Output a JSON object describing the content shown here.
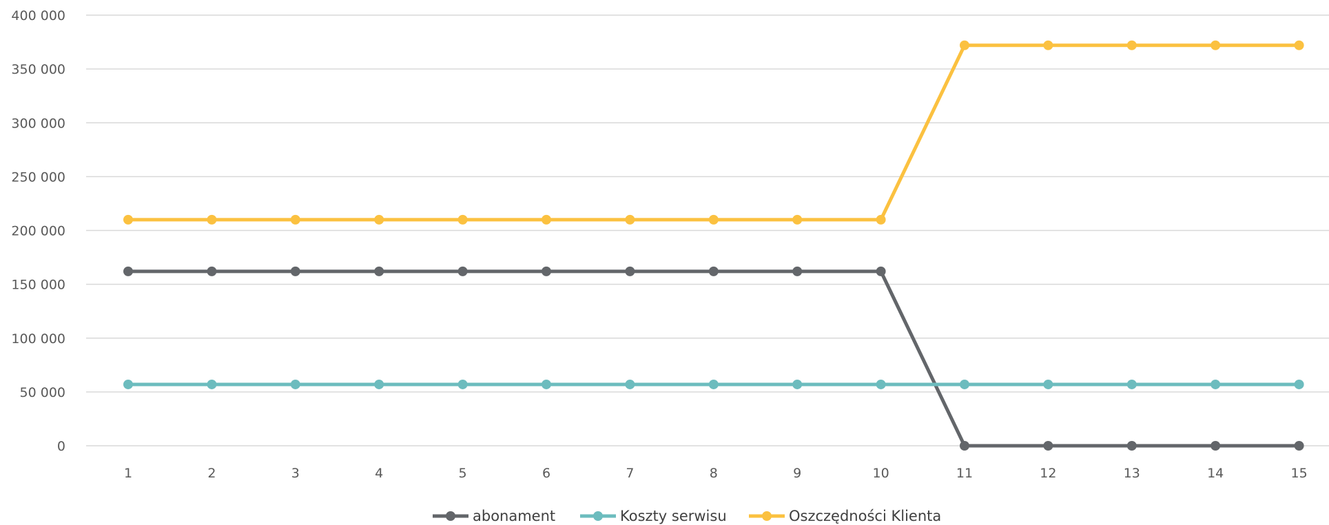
{
  "chart_data": {
    "type": "line",
    "title": "",
    "xlabel": "",
    "ylabel": "",
    "categories": [
      "1",
      "2",
      "3",
      "4",
      "5",
      "6",
      "7",
      "8",
      "9",
      "10",
      "11",
      "12",
      "13",
      "14",
      "15"
    ],
    "y_ticks": [
      "0",
      "50 000",
      "100 000",
      "150 000",
      "200 000",
      "250 000",
      "300 000",
      "350 000",
      "400 000"
    ],
    "ylim": [
      0,
      400000
    ],
    "grid": true,
    "legend_position": "bottom",
    "series": [
      {
        "name": "abonament",
        "color": "#63666a",
        "values": [
          162000,
          162000,
          162000,
          162000,
          162000,
          162000,
          162000,
          162000,
          162000,
          162000,
          0,
          0,
          0,
          0,
          0
        ]
      },
      {
        "name": "Koszty serwisu",
        "color": "#6cbcbe",
        "values": [
          57000,
          57000,
          57000,
          57000,
          57000,
          57000,
          57000,
          57000,
          57000,
          57000,
          57000,
          57000,
          57000,
          57000,
          57000
        ]
      },
      {
        "name": "Oszczędności Klienta",
        "color": "#fbc140",
        "values": [
          210000,
          210000,
          210000,
          210000,
          210000,
          210000,
          210000,
          210000,
          210000,
          210000,
          372000,
          372000,
          372000,
          372000,
          372000
        ]
      }
    ]
  }
}
